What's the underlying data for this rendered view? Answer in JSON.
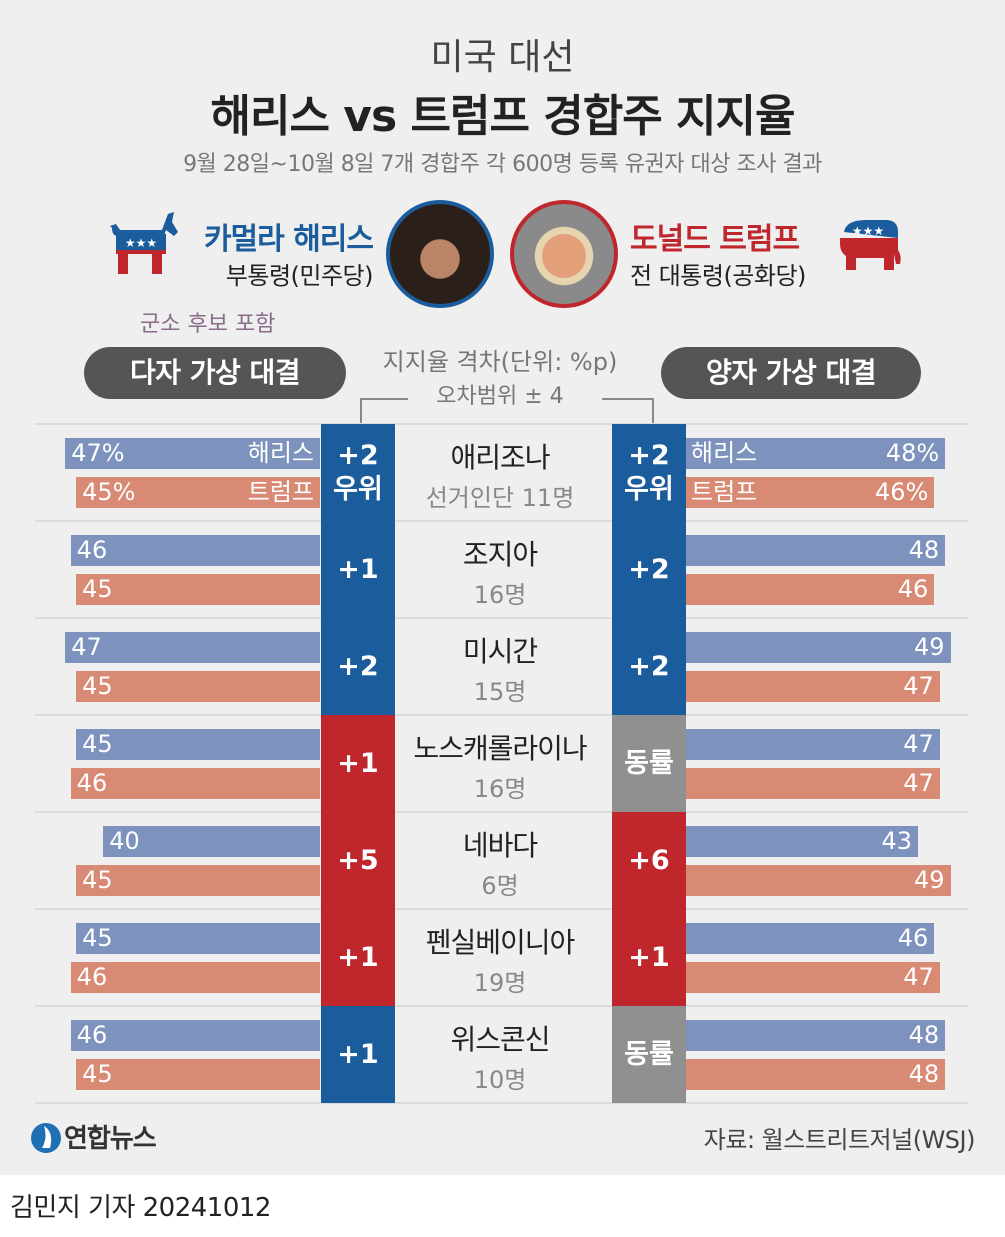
{
  "header": {
    "top_title": "미국 대선",
    "main_title": "해리스 vs 트럼프 경합주 지지율",
    "subtitle": "9월 28일~10월 8일 7개 경합주 각 600명 등록 유권자 대상 조사 결과"
  },
  "candidates": {
    "harris": {
      "name": "카멀라 해리스",
      "role": "부통령(민주당)",
      "symbol": "donkey-icon",
      "color": "#1a5c9c"
    },
    "trump": {
      "name": "도널드 트럼프",
      "role": "전 대통령(공화당)",
      "symbol": "elephant-icon",
      "color": "#c0272d"
    }
  },
  "labels": {
    "include_note": "군소 후보 포함",
    "left_panel": "다자 가상 대결",
    "right_panel": "양자 가상 대결",
    "gap_label": "지지율 격차(단위: %p)",
    "margin_label": "오차범위 ± 4",
    "harris_short": "해리스",
    "trump_short": "트럼프"
  },
  "colors": {
    "harris_bar": "#7d93bd",
    "trump_bar": "#d98a75",
    "harris_lead": "#1a5c9c",
    "trump_lead": "#c0272d",
    "tie": "#909090"
  },
  "chart_data": {
    "type": "bar",
    "unit": "%",
    "categories": [
      "애리조나",
      "조지아",
      "미시간",
      "노스캐롤라이나",
      "네바다",
      "펜실베이니아",
      "위스콘신"
    ],
    "electoral_votes": [
      "선거인단 11명",
      "16명",
      "15명",
      "16명",
      "6명",
      "19명",
      "10명"
    ],
    "multi_candidate": {
      "harris": [
        47,
        46,
        47,
        45,
        40,
        45,
        46
      ],
      "trump": [
        45,
        45,
        45,
        46,
        45,
        46,
        45
      ],
      "gap_labels": [
        "+2",
        "+1",
        "+2",
        "+1",
        "+5",
        "+1",
        "+1"
      ],
      "gap_sublabels": [
        "우위",
        "",
        "",
        "",
        "",
        "",
        ""
      ],
      "leader": [
        "harris",
        "harris",
        "harris",
        "trump",
        "trump",
        "trump",
        "harris"
      ]
    },
    "head_to_head": {
      "harris": [
        48,
        48,
        49,
        47,
        43,
        46,
        48
      ],
      "trump": [
        46,
        46,
        47,
        47,
        49,
        47,
        48
      ],
      "gap_labels": [
        "+2",
        "+2",
        "+2",
        "동률",
        "+6",
        "+1",
        "동률"
      ],
      "gap_sublabels": [
        "우위",
        "",
        "",
        "",
        "",
        "",
        ""
      ],
      "leader": [
        "harris",
        "harris",
        "harris",
        "tie",
        "trump",
        "trump",
        "tie"
      ]
    }
  },
  "footer": {
    "logo_text": "연합뉴스",
    "source": "자료: 월스트리트저널(WSJ)",
    "byline": "김민지 기자  20241012"
  }
}
